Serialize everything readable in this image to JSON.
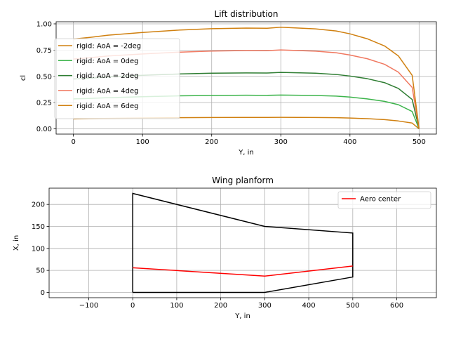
{
  "chart_data": [
    {
      "type": "line",
      "title": "Lift distribution",
      "xlabel": "Y, in",
      "ylabel": "cl",
      "xlim": [
        -25,
        525
      ],
      "ylim": [
        -0.05,
        1.02
      ],
      "xticks": [
        0,
        100,
        200,
        300,
        400,
        500
      ],
      "xtick_labels": [
        "0",
        "100",
        "200",
        "300",
        "400",
        "500"
      ],
      "yticks": [
        0.0,
        0.25,
        0.5,
        0.75,
        1.0
      ],
      "ytick_labels": [
        "0.00",
        "0.25",
        "0.50",
        "0.75",
        "1.00"
      ],
      "grid": true,
      "legend": "upper left",
      "x": [
        0,
        25,
        50,
        100,
        150,
        200,
        250,
        280,
        300,
        350,
        380,
        400,
        425,
        450,
        470,
        490,
        500
      ],
      "series": [
        {
          "name": "rigid: AoA = -2deg",
          "color": "#d08010",
          "values": [
            0.095,
            0.098,
            0.1,
            0.103,
            0.106,
            0.108,
            0.109,
            0.109,
            0.11,
            0.108,
            0.106,
            0.103,
            0.097,
            0.088,
            0.075,
            0.055,
            0.0
          ]
        },
        {
          "name": "rigid: AoA = 0deg",
          "color": "#3cb44b",
          "values": [
            0.285,
            0.29,
            0.297,
            0.306,
            0.314,
            0.318,
            0.32,
            0.319,
            0.322,
            0.318,
            0.312,
            0.303,
            0.285,
            0.262,
            0.23,
            0.165,
            0.0
          ]
        },
        {
          "name": "rigid: AoA = 2deg",
          "color": "#2e7d32",
          "values": [
            0.475,
            0.483,
            0.495,
            0.51,
            0.522,
            0.53,
            0.533,
            0.532,
            0.538,
            0.53,
            0.518,
            0.503,
            0.478,
            0.44,
            0.385,
            0.28,
            0.0
          ]
        },
        {
          "name": "rigid: AoA = 4deg",
          "color": "#f07860",
          "values": [
            0.665,
            0.678,
            0.694,
            0.713,
            0.73,
            0.741,
            0.746,
            0.745,
            0.752,
            0.74,
            0.725,
            0.703,
            0.668,
            0.615,
            0.54,
            0.395,
            0.0
          ]
        },
        {
          "name": "rigid: AoA = 6deg",
          "color": "#d08010",
          "values": [
            0.855,
            0.872,
            0.892,
            0.918,
            0.94,
            0.954,
            0.96,
            0.958,
            0.968,
            0.952,
            0.932,
            0.905,
            0.858,
            0.79,
            0.695,
            0.51,
            0.0
          ]
        }
      ]
    },
    {
      "type": "line",
      "title": "Wing planform",
      "xlabel": "Y, in",
      "ylabel": "X, in",
      "xlim": [
        -190,
        690
      ],
      "ylim": [
        -12,
        237
      ],
      "xticks": [
        -100,
        0,
        100,
        200,
        300,
        400,
        500,
        600
      ],
      "xtick_labels": [
        "−100",
        "0",
        "100",
        "200",
        "300",
        "400",
        "500",
        "600"
      ],
      "yticks": [
        0,
        50,
        100,
        150,
        200
      ],
      "ytick_labels": [
        "0",
        "50",
        "100",
        "150",
        "200"
      ],
      "grid": true,
      "legend": "upper right",
      "outline": {
        "color": "#000000",
        "points": [
          [
            0,
            0
          ],
          [
            300,
            0
          ],
          [
            500,
            35
          ],
          [
            500,
            135
          ],
          [
            300,
            150
          ],
          [
            0,
            225
          ],
          [
            0,
            0
          ]
        ]
      },
      "series": [
        {
          "name": "Aero center",
          "color": "#ff0000",
          "points": [
            [
              0,
              56
            ],
            [
              300,
              37
            ],
            [
              500,
              60
            ]
          ]
        }
      ]
    }
  ]
}
